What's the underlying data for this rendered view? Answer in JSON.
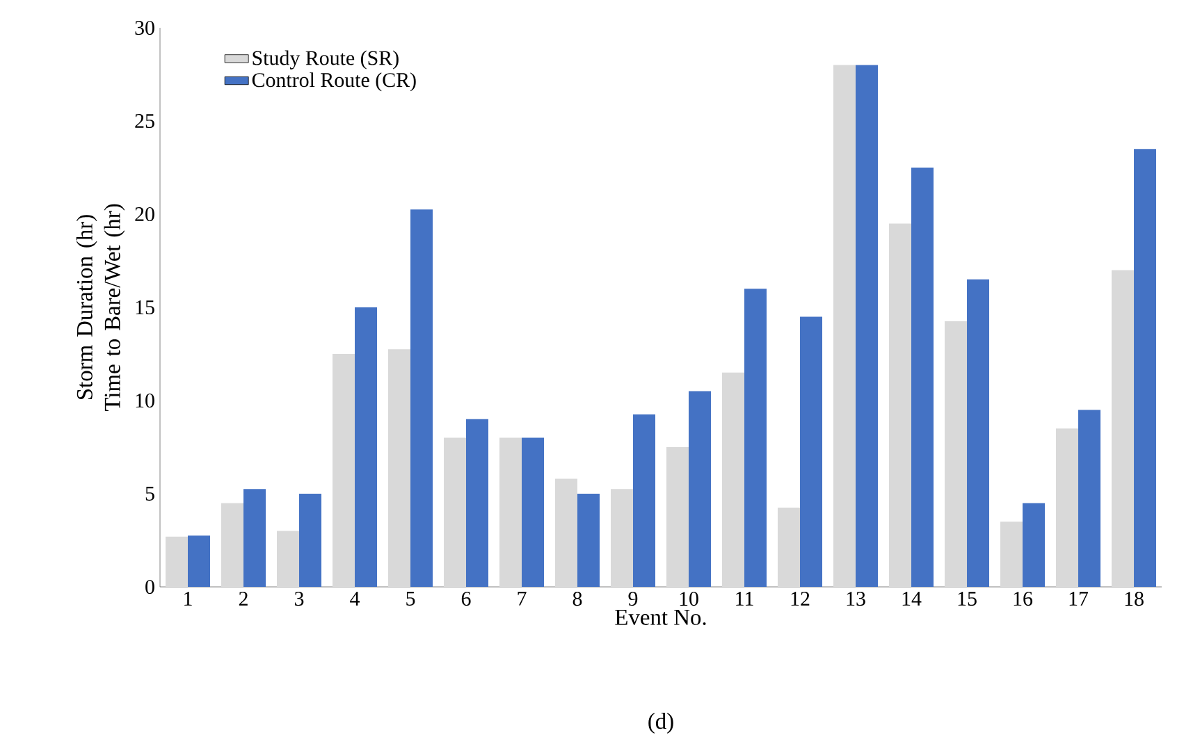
{
  "chart_data": {
    "type": "bar",
    "xlabel": "Event No.",
    "ylabel": "Storm Duration (hr) Time to Bare/Wet (hr)",
    "categories": [
      "1",
      "2",
      "3",
      "4",
      "5",
      "6",
      "7",
      "8",
      "9",
      "10",
      "11",
      "12",
      "13",
      "14",
      "15",
      "16",
      "17",
      "18"
    ],
    "series": [
      {
        "name": "Study Route (SR)",
        "color": "#d9d9d9",
        "values": [
          2.7,
          4.5,
          3.0,
          12.5,
          12.75,
          8,
          8,
          5.8,
          5.25,
          7.5,
          11.5,
          4.25,
          28,
          19.5,
          14.25,
          3.5,
          8.5,
          17
        ]
      },
      {
        "name": "Control Route (CR)",
        "color": "#4472c4",
        "values": [
          2.75,
          5.25,
          5,
          15,
          20.25,
          9,
          8,
          5,
          9.25,
          10.5,
          16,
          14.5,
          28,
          22.5,
          16.5,
          4.5,
          9.5,
          23.5
        ]
      }
    ],
    "ylim": [
      0,
      30
    ],
    "yticks": [
      0,
      5,
      10,
      15,
      20,
      25,
      30
    ],
    "legend": "top left",
    "grid": false,
    "annotations": [
      "(d)"
    ]
  }
}
